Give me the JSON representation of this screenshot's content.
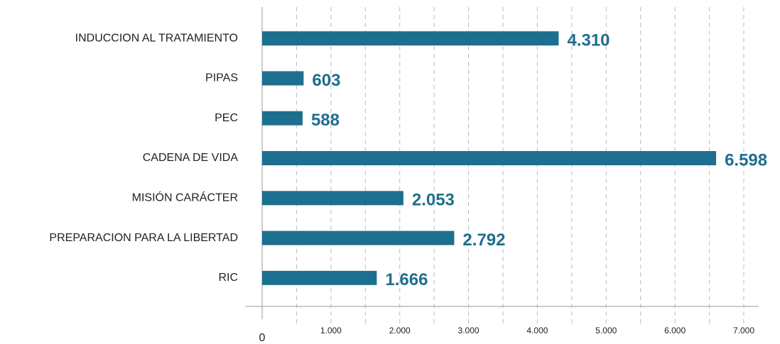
{
  "chart_data": {
    "type": "hbar",
    "categories": [
      "INDUCCION AL TRATAMIENTO",
      "PIPAS",
      "PEC",
      "CADENA DE VIDA",
      "MISIÓN CARÁCTER",
      "PREPARACION PARA LA LIBERTAD",
      "RIC"
    ],
    "values": [
      4310,
      603,
      588,
      6598,
      2053,
      2792,
      1666
    ],
    "value_labels": [
      "4.310",
      "603",
      "588",
      "6.598",
      "2.053",
      "2.792",
      "1.666"
    ],
    "color": "#1d6f8f",
    "xlim": [
      0,
      7000
    ],
    "xticks": [
      0,
      {
        "value": 1000,
        "label": "1.000"
      },
      {
        "value": 2000,
        "label": "2.000"
      },
      {
        "value": 3000,
        "label": "3.000"
      },
      {
        "value": 4000,
        "label": "4.000"
      },
      {
        "value": 5000,
        "label": "5.000"
      },
      {
        "value": 6000,
        "label": "6.000"
      },
      {
        "value": 7000,
        "label": "7.000"
      }
    ],
    "grid": true
  }
}
